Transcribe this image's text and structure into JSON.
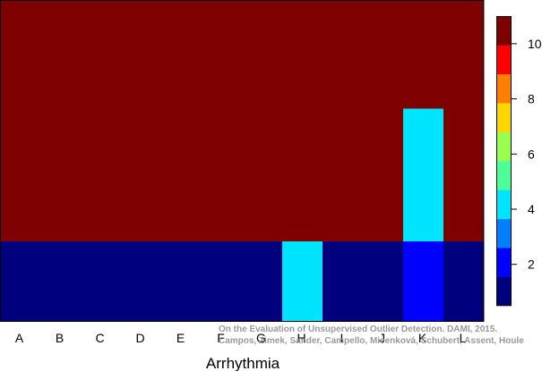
{
  "chart_data": {
    "type": "heatmap",
    "xlabel": "Arrhythmia",
    "x_categories": [
      "A",
      "B",
      "C",
      "D",
      "E",
      "F",
      "G",
      "H",
      "I",
      "J",
      "K",
      "L"
    ],
    "y_bands": [
      "lower",
      "upper"
    ],
    "cells": [
      {
        "x": "A",
        "lower": 1,
        "upper": 11
      },
      {
        "x": "B",
        "lower": 1,
        "upper": 11
      },
      {
        "x": "C",
        "lower": 1,
        "upper": 11
      },
      {
        "x": "D",
        "lower": 1,
        "upper": 11
      },
      {
        "x": "E",
        "lower": 1,
        "upper": 11
      },
      {
        "x": "F",
        "lower": 1,
        "upper": 11
      },
      {
        "x": "G",
        "lower": 1,
        "upper": 11
      },
      {
        "x": "H",
        "lower": 4,
        "upper": 11
      },
      {
        "x": "I",
        "lower": 1,
        "upper": 11
      },
      {
        "x": "J",
        "lower": 1,
        "upper": 11
      },
      {
        "x": "K",
        "lower": 2,
        "upper": 11,
        "upper_split": {
          "fraction": 0.55,
          "value": 4
        }
      },
      {
        "x": "L",
        "lower": 1,
        "upper": 11
      }
    ],
    "colorbar": {
      "range": [
        0.5,
        11
      ],
      "ticks": [
        2,
        4,
        6,
        8,
        10
      ],
      "colors": [
        "#00007F",
        "#0000FF",
        "#007FFF",
        "#00E5FF",
        "#4CFF99",
        "#99FF4C",
        "#FFD700",
        "#FF7F00",
        "#FF0000",
        "#7F0000"
      ]
    },
    "color_map": {
      "1": "#00007F",
      "2": "#0000FF",
      "4": "#00E5FF",
      "11": "#7F0000"
    },
    "credit": [
      "On the Evaluation of Unsupervised Outlier Detection. DAMI, 2015.",
      "Campos, Zimek, Sander, Campello, Micenková, Schubert, Assent, Houle"
    ]
  }
}
